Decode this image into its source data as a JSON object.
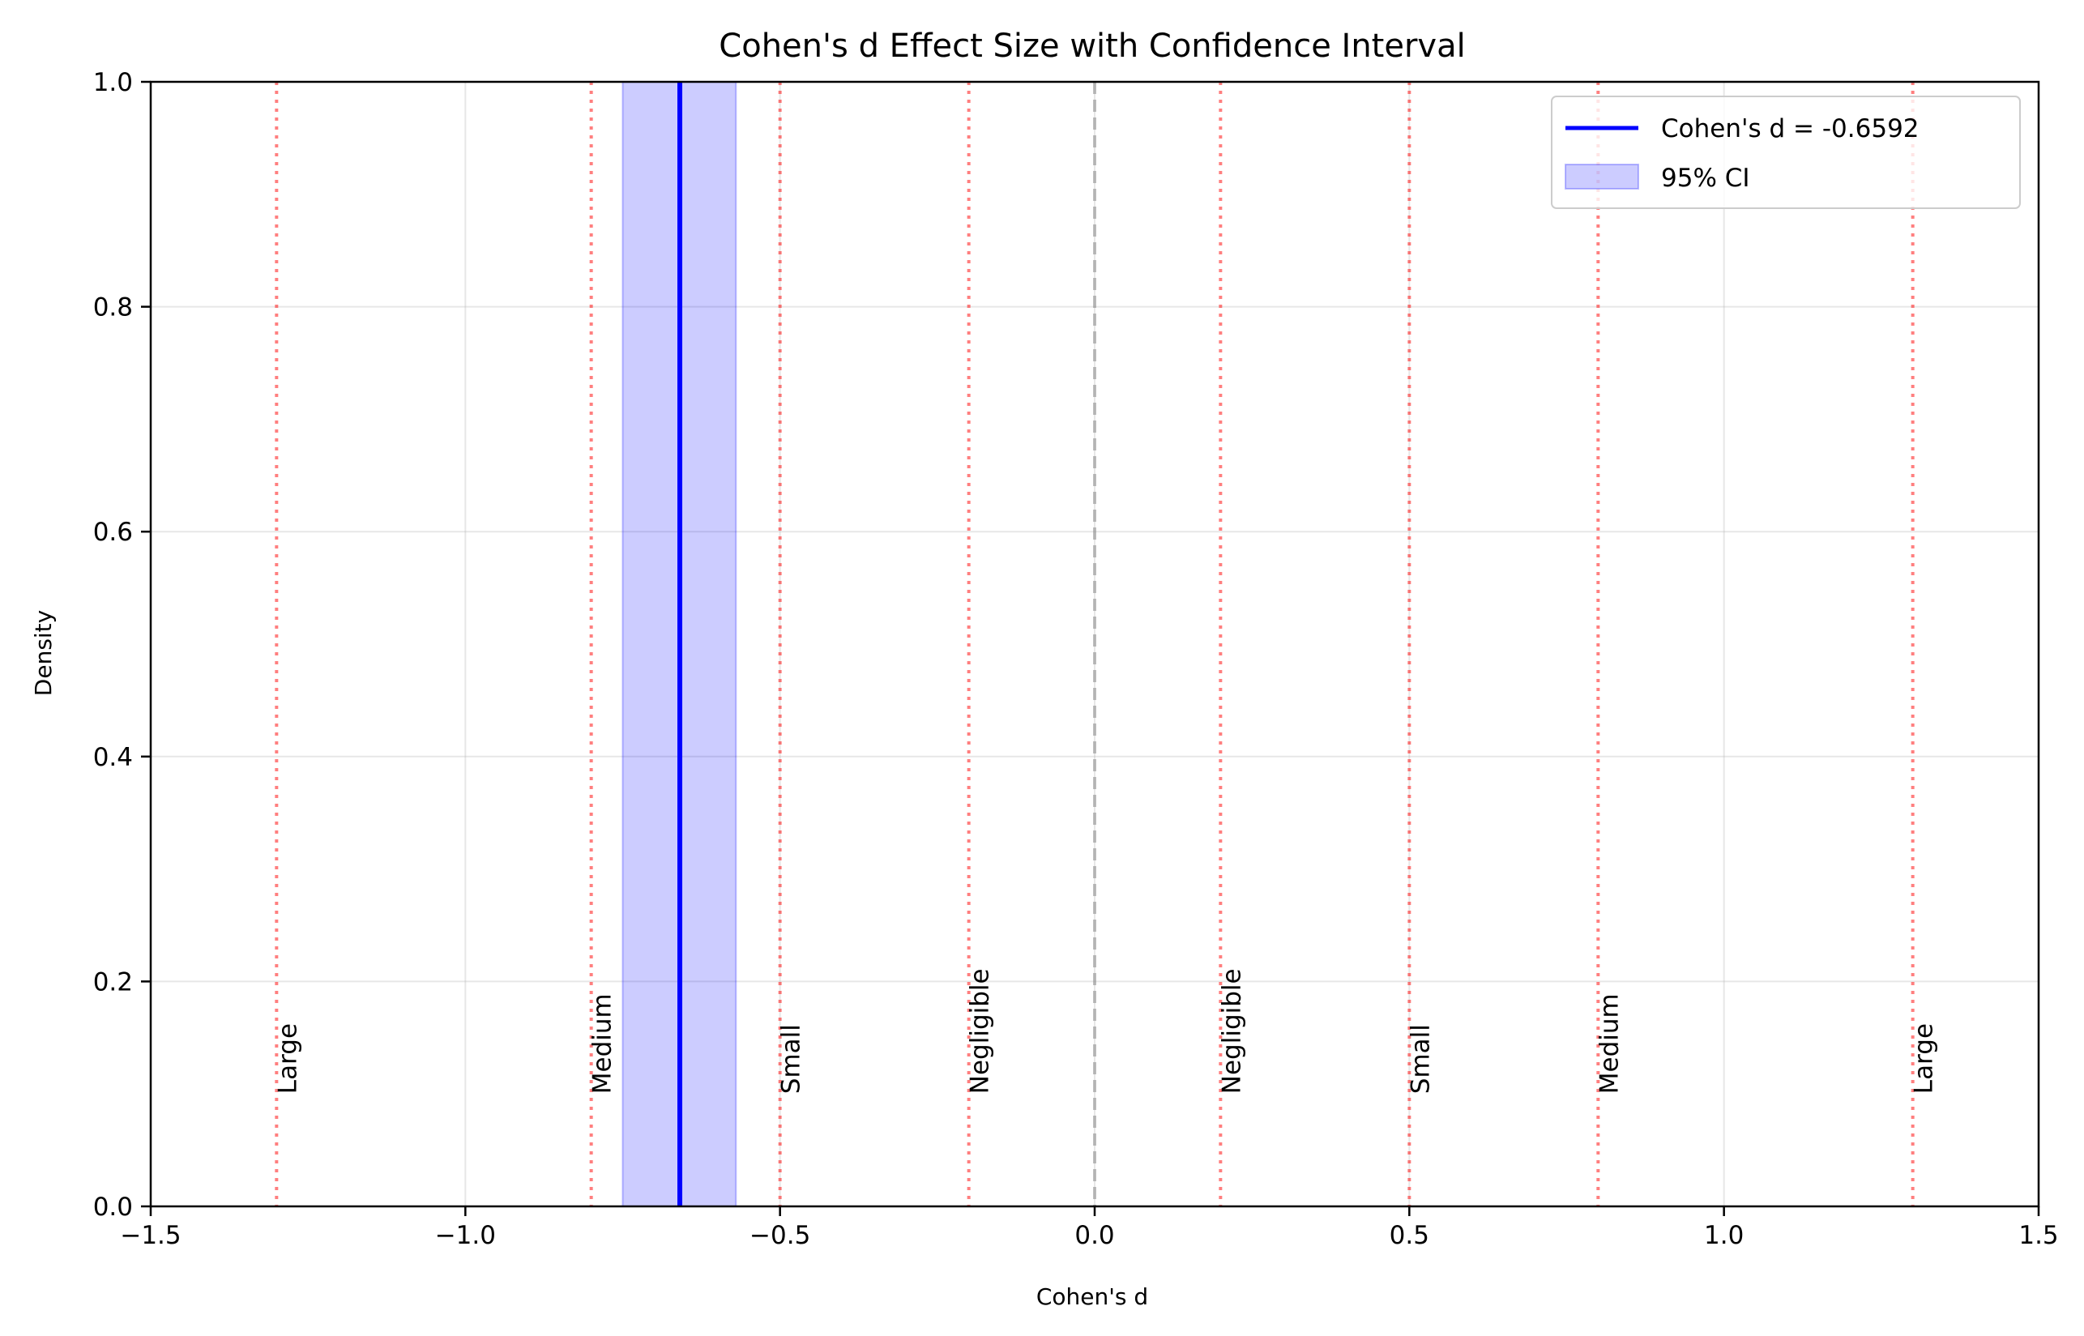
{
  "chart_data": {
    "type": "line",
    "title": "Cohen's d Effect Size with Confidence Interval",
    "xlabel": "Cohen's d",
    "ylabel": "Density",
    "xlim": [
      -1.5,
      1.5
    ],
    "ylim": [
      0.0,
      1.0
    ],
    "x_ticks": [
      -1.5,
      -1.0,
      -0.5,
      0.0,
      0.5,
      1.0,
      1.5
    ],
    "x_tick_labels": [
      "−1.5",
      "−1.0",
      "−0.5",
      "0.0",
      "0.5",
      "1.0",
      "1.5"
    ],
    "y_ticks": [
      0.0,
      0.2,
      0.4,
      0.6,
      0.8,
      1.0
    ],
    "y_tick_labels": [
      "0.0",
      "0.2",
      "0.4",
      "0.6",
      "0.8",
      "1.0"
    ],
    "grid": true,
    "legend_position": "top-right",
    "effect_size": {
      "value": -0.6592,
      "label": "Cohen's d = -0.6592",
      "color": "#0000ff"
    },
    "confidence_interval": {
      "lower": -0.75,
      "upper": -0.57,
      "label": "95% CI",
      "color": "#0000ff",
      "alpha": 0.2
    },
    "zero_line": {
      "x": 0.0,
      "color": "#808080"
    },
    "thresholds": [
      {
        "x": -1.3,
        "label": "Large"
      },
      {
        "x": -0.8,
        "label": "Medium"
      },
      {
        "x": -0.5,
        "label": "Small"
      },
      {
        "x": -0.2,
        "label": "Negligible"
      },
      {
        "x": 0.2,
        "label": "Negligible"
      },
      {
        "x": 0.5,
        "label": "Small"
      },
      {
        "x": 0.8,
        "label": "Medium"
      },
      {
        "x": 1.3,
        "label": "Large"
      }
    ],
    "threshold_label_y": 0.1,
    "threshold_color": "#ff0000"
  }
}
